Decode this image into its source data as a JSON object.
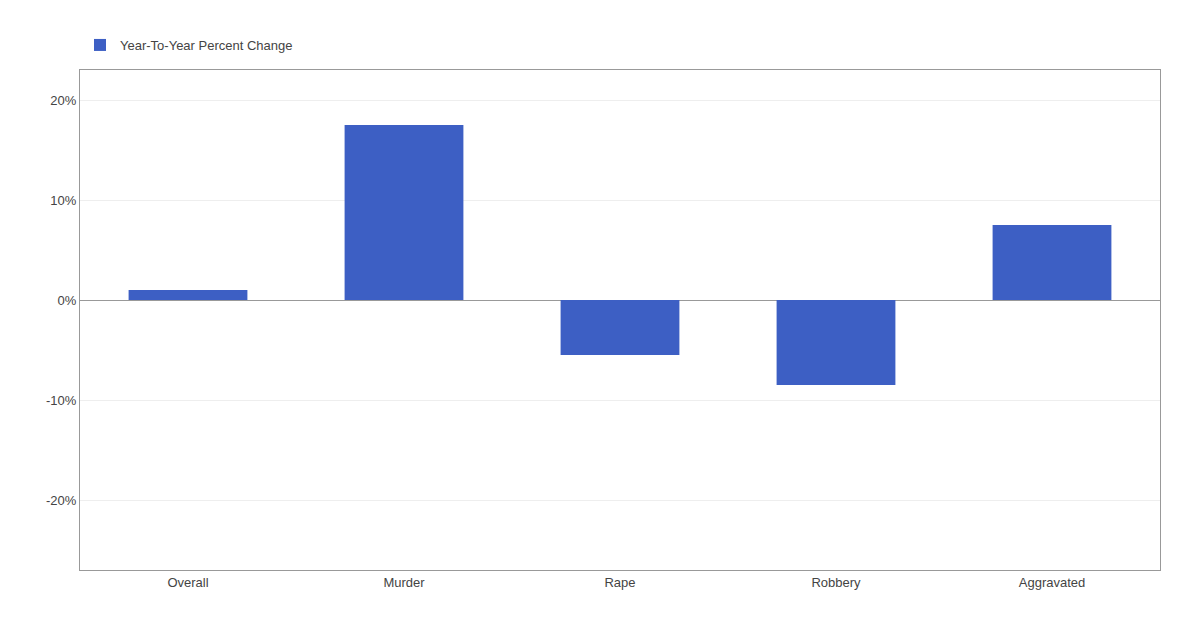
{
  "chart_data": {
    "type": "bar",
    "categories": [
      "Overall",
      "Murder",
      "Rape",
      "Robbery",
      "Aggravated"
    ],
    "series": [
      {
        "name": "Year-To-Year Percent Change",
        "color": "#3d5fc4",
        "values": [
          1.0,
          17.5,
          -5.5,
          -8.5,
          7.5
        ]
      }
    ],
    "ylim": [
      -27,
      23
    ],
    "yticks": [
      {
        "value": -20,
        "label": "-20%"
      },
      {
        "value": -10,
        "label": "-10%"
      },
      {
        "value": 0,
        "label": "0%"
      },
      {
        "value": 10,
        "label": "10%"
      },
      {
        "value": 20,
        "label": "20%"
      }
    ],
    "grid": true,
    "legend": "top-left"
  }
}
